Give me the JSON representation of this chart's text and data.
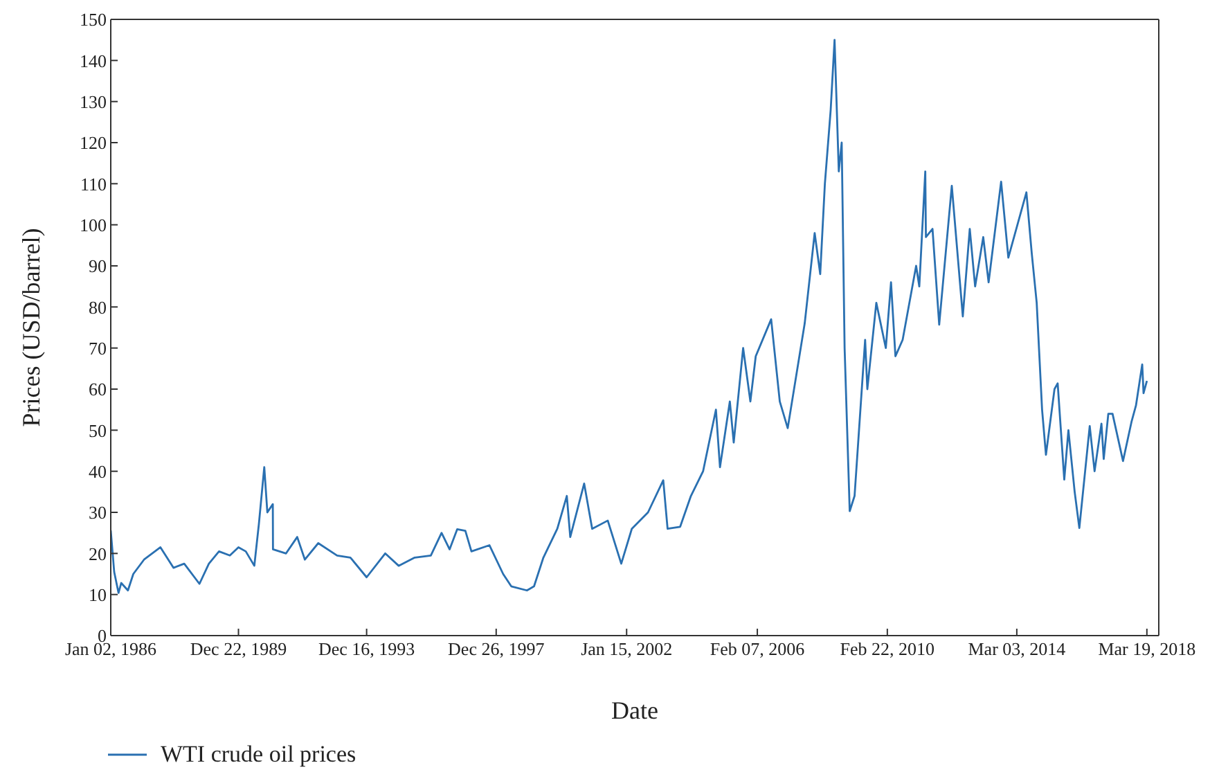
{
  "chart_data": {
    "type": "line",
    "xlabel": "Date",
    "ylabel": "Prices (USD/barrel)",
    "legend": "bottom left",
    "xlim": [
      "1986-01-02",
      "2018-08-01"
    ],
    "xticks": [
      {
        "value": "1986-01-02",
        "label": "Jan 02, 1986"
      },
      {
        "value": "1989-12-22",
        "label": "Dec 22, 1989"
      },
      {
        "value": "1993-12-16",
        "label": "Dec 16, 1993"
      },
      {
        "value": "1997-12-26",
        "label": "Dec 26, 1997"
      },
      {
        "value": "2002-01-15",
        "label": "Jan 15, 2002"
      },
      {
        "value": "2006-02-07",
        "label": "Feb 07, 2006"
      },
      {
        "value": "2010-02-22",
        "label": "Feb 22, 2010"
      },
      {
        "value": "2014-03-03",
        "label": "Mar 03, 2014"
      },
      {
        "value": "2018-03-19",
        "label": "Mar 19, 2018"
      }
    ],
    "ylim": [
      0,
      150
    ],
    "yticks": [
      0,
      10,
      20,
      30,
      40,
      50,
      60,
      70,
      80,
      90,
      100,
      110,
      120,
      130,
      140,
      150
    ],
    "x": [
      "1986-01-02",
      "1986-02-10",
      "1986-03-31",
      "1986-05-01",
      "1986-07-16",
      "1986-09-15",
      "1987-01-15",
      "1987-07-20",
      "1987-12-15",
      "1988-04-15",
      "1988-10-05",
      "1989-01-20",
      "1989-05-15",
      "1989-09-15",
      "1989-12-22",
      "1990-03-15",
      "1990-06-20",
      "1990-08-10",
      "1990-10-11",
      "1990-11-15",
      "1991-01-16",
      "1991-01-18",
      "1991-06-15",
      "1991-10-20",
      "1992-01-15",
      "1992-06-15",
      "1993-01-15",
      "1993-06-15",
      "1993-12-16",
      "1994-07-15",
      "1994-12-15",
      "1995-06-15",
      "1995-12-15",
      "1996-04-15",
      "1996-07-15",
      "1996-10-10",
      "1997-01-10",
      "1997-03-20",
      "1997-10-10",
      "1998-03-15",
      "1998-06-15",
      "1998-12-10",
      "1999-03-01",
      "1999-06-15",
      "1999-11-20",
      "2000-03-07",
      "2000-04-15",
      "2000-09-20",
      "2000-12-20",
      "2001-06-15",
      "2001-11-15",
      "2002-03-15",
      "2002-09-15",
      "2003-03-07",
      "2003-04-25",
      "2003-09-15",
      "2004-01-15",
      "2004-06-01",
      "2004-10-25",
      "2004-12-10",
      "2005-04-01",
      "2005-05-15",
      "2005-08-30",
      "2005-11-20",
      "2006-01-20",
      "2006-07-14",
      "2006-10-20",
      "2007-01-18",
      "2007-07-30",
      "2007-11-20",
      "2008-01-22",
      "2008-03-15",
      "2008-05-20",
      "2008-07-03",
      "2008-08-20",
      "2008-09-22",
      "2008-10-25",
      "2008-12-22",
      "2009-02-15",
      "2009-06-15",
      "2009-07-10",
      "2009-10-20",
      "2010-02-05",
      "2010-04-05",
      "2010-05-25",
      "2010-08-15",
      "2011-01-15",
      "2011-02-20",
      "2011-04-29",
      "2011-05-06",
      "2011-07-20",
      "2011-10-04",
      "2012-02-24",
      "2012-06-28",
      "2012-09-15",
      "2012-11-15",
      "2013-02-15",
      "2013-04-17",
      "2013-09-06",
      "2013-11-27",
      "2014-06-20",
      "2014-08-20",
      "2014-10-15",
      "2014-12-15",
      "2015-01-28",
      "2015-05-05",
      "2015-06-10",
      "2015-08-24",
      "2015-10-10",
      "2015-12-20",
      "2016-02-11",
      "2016-06-08",
      "2016-08-02",
      "2016-10-19",
      "2016-11-14",
      "2017-01-05",
      "2017-02-22",
      "2017-06-21",
      "2017-09-25",
      "2017-11-15",
      "2018-01-25",
      "2018-02-09",
      "2018-03-19"
    ],
    "series": [
      {
        "name": "WTI crude oil prices",
        "color": "#2a70b1",
        "values": [
          25.6,
          15.5,
          10.4,
          12.8,
          11.0,
          15.0,
          18.5,
          21.5,
          16.5,
          17.5,
          12.6,
          17.5,
          20.5,
          19.5,
          21.5,
          20.5,
          17.0,
          27.0,
          41.0,
          30.0,
          32.0,
          21.0,
          20.0,
          24.0,
          18.5,
          22.5,
          19.5,
          19.0,
          14.2,
          20.0,
          17.0,
          19.0,
          19.5,
          25.0,
          21.0,
          25.9,
          25.5,
          20.5,
          22.0,
          15.0,
          12.0,
          11.0,
          12.0,
          19.0,
          26.0,
          34.0,
          24.0,
          37.0,
          26.0,
          28.0,
          17.5,
          26.0,
          30.0,
          37.8,
          26.0,
          26.5,
          34.0,
          40.0,
          55.0,
          41.0,
          57.0,
          47.0,
          70.0,
          57.0,
          68.0,
          77.0,
          57.0,
          50.5,
          76.0,
          98.0,
          88.0,
          110.0,
          128.0,
          145.0,
          113.0,
          120.0,
          70.0,
          30.3,
          34.0,
          72.0,
          60.0,
          81.0,
          70.0,
          86.0,
          68.0,
          72.0,
          90.0,
          85.0,
          113.0,
          97.0,
          99.0,
          75.7,
          109.5,
          77.7,
          99.0,
          85.0,
          97.0,
          86.0,
          110.5,
          92.0,
          107.9,
          93.0,
          81.0,
          55.0,
          44.0,
          60.0,
          61.4,
          38.0,
          50.0,
          35.0,
          26.2,
          51.0,
          40.0,
          51.6,
          43.0,
          54.0,
          54.0,
          42.5,
          52.0,
          56.0,
          66.0,
          59.0,
          62.0
        ]
      }
    ]
  }
}
